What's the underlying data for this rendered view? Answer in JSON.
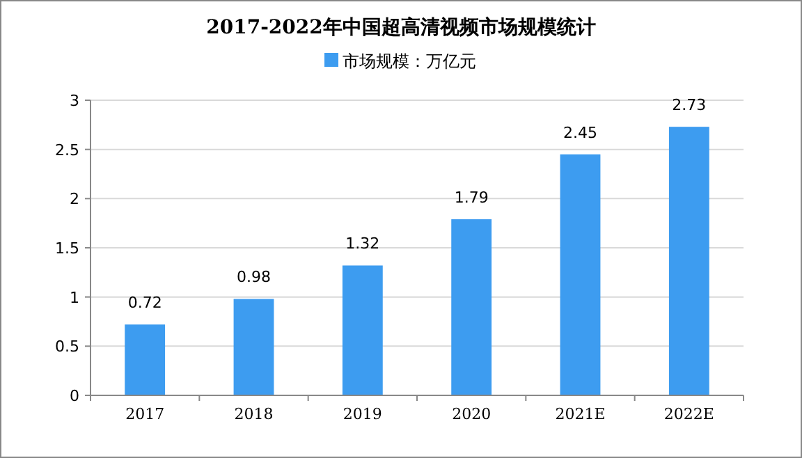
{
  "chart_data": {
    "type": "bar",
    "title": "2017-2022年中国超高清视频市场规模统计",
    "categories": [
      "2017",
      "2018",
      "2019",
      "2020",
      "2021E",
      "2022E"
    ],
    "series": [
      {
        "name": "市场规模：万亿元",
        "color": "#3d9cf0",
        "values": [
          0.72,
          0.98,
          1.32,
          1.79,
          2.45,
          2.73
        ]
      }
    ],
    "ylim": [
      0,
      3
    ],
    "yticks": [
      0,
      0.5,
      1,
      1.5,
      2,
      2.5,
      3
    ],
    "grid": "y",
    "legend": "top",
    "data_labels": true
  }
}
